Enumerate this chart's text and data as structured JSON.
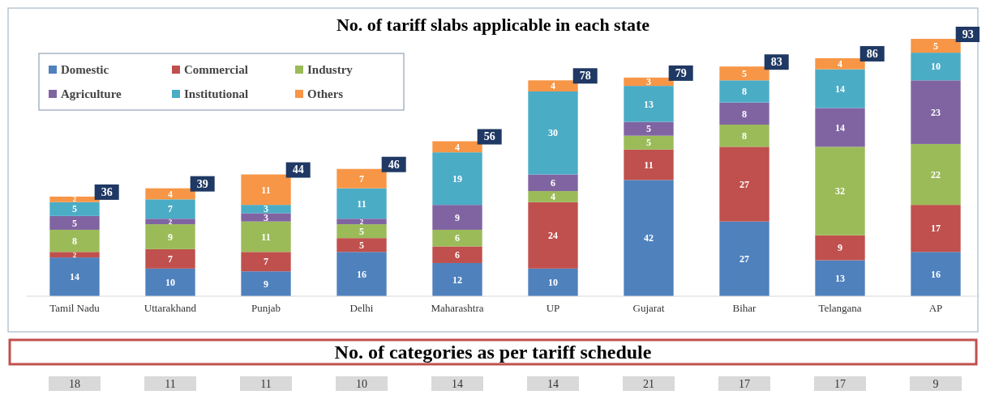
{
  "chart_data": {
    "type": "bar",
    "title": "No. of tariff slabs applicable in each state",
    "categories": [
      "Tamil Nadu",
      "Uttarakhand",
      "Punjab",
      "Delhi",
      "Maharashtra",
      "UP",
      "Gujarat",
      "Bihar",
      "Telangana",
      "AP"
    ],
    "series": [
      {
        "name": "Domestic",
        "color": "#4f81bd",
        "values": [
          14,
          10,
          9,
          16,
          12,
          10,
          42,
          27,
          13,
          16
        ]
      },
      {
        "name": "Commercial",
        "color": "#c0504d",
        "values": [
          2,
          7,
          7,
          5,
          6,
          24,
          11,
          27,
          9,
          17
        ]
      },
      {
        "name": "Industry",
        "color": "#9bbb59",
        "values": [
          8,
          9,
          11,
          5,
          6,
          4,
          5,
          8,
          32,
          22
        ]
      },
      {
        "name": "Agriculture",
        "color": "#8064a2",
        "values": [
          5,
          2,
          3,
          2,
          9,
          6,
          5,
          8,
          14,
          23
        ]
      },
      {
        "name": "Institutional",
        "color": "#4bacc6",
        "values": [
          5,
          7,
          3,
          11,
          19,
          30,
          13,
          8,
          14,
          10
        ]
      },
      {
        "name": "Others",
        "color": "#f79646",
        "values": [
          2,
          4,
          11,
          7,
          4,
          4,
          3,
          5,
          4,
          5
        ]
      }
    ],
    "stacked": true,
    "data_labels": true,
    "totals": [
      "36",
      "39",
      "44",
      "46",
      "56",
      "78",
      "79",
      "83",
      "86",
      "93"
    ],
    "legend": "top left",
    "tick_labels": "x",
    "grid": false,
    "annotations": [
      "No. of categories as per tariff schedule",
      "18",
      "11",
      "11",
      "10",
      "14",
      "14",
      "21",
      "17",
      "17",
      "9"
    ]
  }
}
